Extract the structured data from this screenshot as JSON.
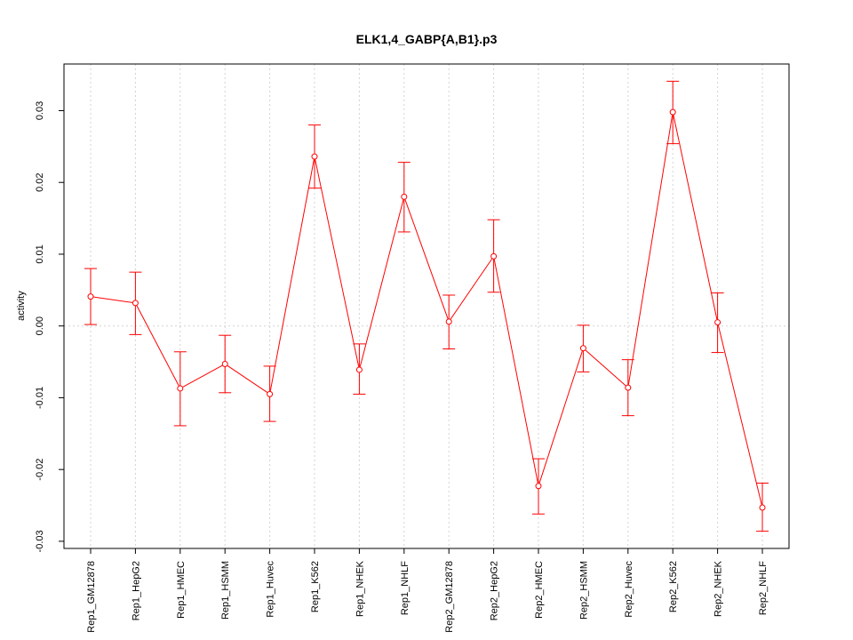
{
  "chart_data": {
    "type": "line",
    "title": "ELK1,4_GABP{A,B1}.p3",
    "xlabel": "",
    "ylabel": "activity",
    "ylim": [
      -0.031,
      0.0365
    ],
    "yticks": [
      -0.03,
      -0.02,
      -0.01,
      0.0,
      0.01,
      0.02,
      0.03
    ],
    "ytick_labels": [
      "-0.03",
      "-0.02",
      "-0.01",
      "0.00",
      "0.01",
      "0.02",
      "0.03"
    ],
    "grid": true,
    "series_color": "#ff0000",
    "grid_color": "#d3d3d3",
    "categories": [
      "Rep1_GM12878",
      "Rep1_HepG2",
      "Rep1_HMEC",
      "Rep1_HSMM",
      "Rep1_Huvec",
      "Rep1_K562",
      "Rep1_NHEK",
      "Rep1_NHLF",
      "Rep2_GM12878",
      "Rep2_HepG2",
      "Rep2_HMEC",
      "Rep2_HSMM",
      "Rep2_Huvec",
      "Rep2_K562",
      "Rep2_NHEK",
      "Rep2_NHLF"
    ],
    "series": [
      {
        "name": "activity",
        "values": [
          0.0041,
          0.0032,
          -0.0087,
          -0.0053,
          -0.0095,
          0.0236,
          -0.0061,
          0.018,
          0.0006,
          0.0097,
          -0.0223,
          -0.0031,
          -0.0086,
          0.0298,
          0.0005,
          -0.0253
        ],
        "err_upper": [
          0.008,
          0.0075,
          -0.0036,
          -0.0013,
          -0.0056,
          0.028,
          -0.0025,
          0.0228,
          0.0043,
          0.0148,
          -0.0185,
          0.0001,
          -0.0047,
          0.0341,
          0.0046,
          -0.0219
        ],
        "err_lower": [
          0.0002,
          -0.0012,
          -0.0139,
          -0.0093,
          -0.0133,
          0.0192,
          -0.0095,
          0.0131,
          -0.0032,
          0.0047,
          -0.0262,
          -0.0064,
          -0.0125,
          0.0254,
          -0.0037,
          -0.0286
        ]
      }
    ]
  }
}
